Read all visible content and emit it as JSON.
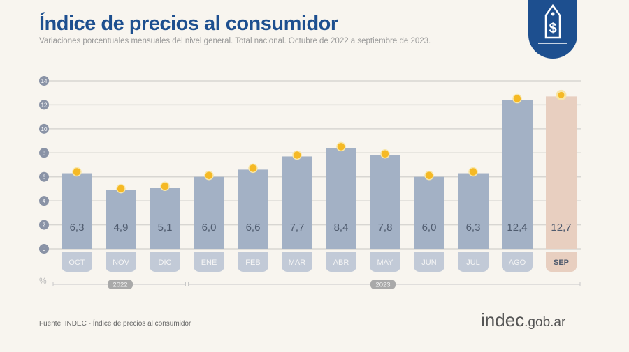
{
  "header": {
    "title": "Índice de precios al consumidor",
    "subtitle": "Variaciones porcentuales mensuales del nivel general. Total nacional. Octubre de 2022 a septiembre de 2023.",
    "logo_icon": "price-tag-dollar-icon"
  },
  "footer": {
    "source": "Fuente: INDEC - Índice de precios al consumidor",
    "brand_main": "indec",
    "brand_suffix": ".gob.ar"
  },
  "colors": {
    "title": "#1d4f8f",
    "bar": "#a3b1c5",
    "bar_highlight": "#e8cfc0",
    "dot": "#f5b925",
    "label_pill": "#c2cad7",
    "logo": "#1d4f8f"
  },
  "chart_data": {
    "type": "bar",
    "title": "",
    "xlabel": "",
    "ylabel": "%",
    "ylim": [
      0,
      14
    ],
    "yticks": [
      0,
      2,
      4,
      6,
      8,
      10,
      12,
      14
    ],
    "grid": true,
    "categories": [
      "OCT",
      "NOV",
      "DIC",
      "ENE",
      "FEB",
      "MAR",
      "ABR",
      "MAY",
      "JUN",
      "JUL",
      "AGO",
      "SEP"
    ],
    "values": [
      6.3,
      4.9,
      5.1,
      6.0,
      6.6,
      7.7,
      8.4,
      7.8,
      6.0,
      6.3,
      12.4,
      12.7
    ],
    "data_labels": [
      "6,3",
      "4,9",
      "5,1",
      "6,0",
      "6,6",
      "7,7",
      "8,4",
      "7,8",
      "6,0",
      "6,3",
      "12,4",
      "12,7"
    ],
    "highlight": "SEP",
    "year_groups": [
      {
        "label": "2022",
        "months": 3
      },
      {
        "label": "2023",
        "months": 9
      }
    ]
  }
}
